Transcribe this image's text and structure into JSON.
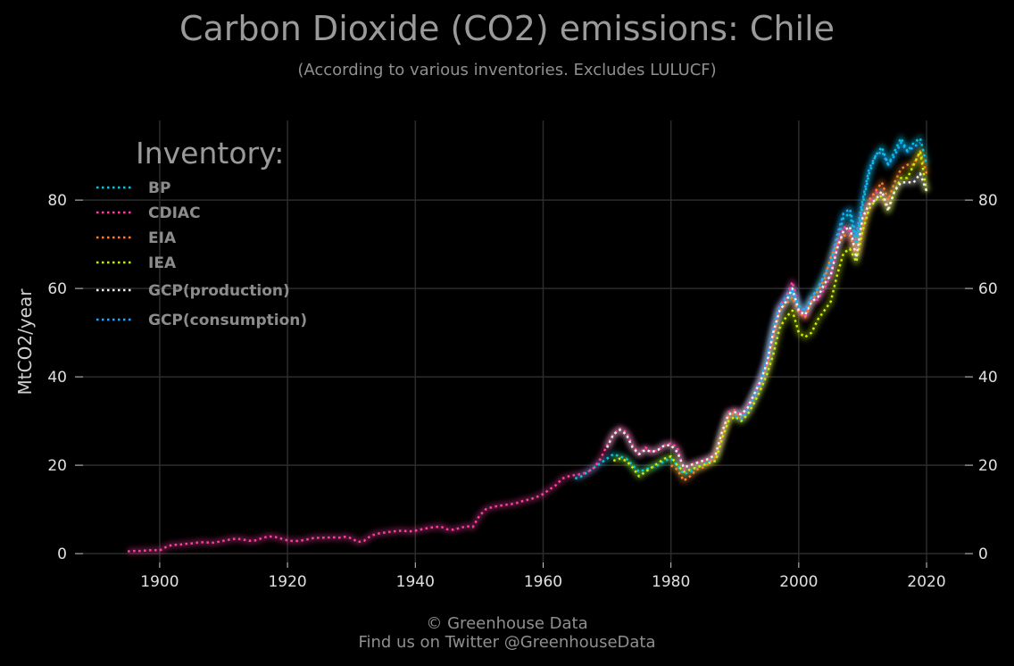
{
  "header": {
    "title": "Carbon Dioxide (CO2) emissions: Chile",
    "subtitle": "(According to various inventories. Excludes LULUCF)"
  },
  "footer": {
    "copyright": "© Greenhouse Data",
    "twitter": "Find us on Twitter @GreenhouseData"
  },
  "chart_data": {
    "type": "line",
    "title": "Carbon Dioxide (CO2) emissions: Chile",
    "subtitle": "(According to various inventories. Excludes LULUCF)",
    "ylabel": "MtCO2/year",
    "xlabel": "",
    "xlim": [
      1888,
      2026
    ],
    "ylim": [
      -2,
      98
    ],
    "x_ticks": [
      1900,
      1920,
      1940,
      1960,
      1980,
      2000,
      2020
    ],
    "y_ticks": [
      0,
      20,
      40,
      60,
      80
    ],
    "grid": true,
    "legend": {
      "title": "Inventory:",
      "placement": "top-left"
    },
    "series": [
      {
        "name": "BP",
        "color": "#00c8e0",
        "x": [
          1965,
          1966,
          1967,
          1968,
          1969,
          1970,
          1971,
          1972,
          1973,
          1974,
          1975,
          1976,
          1977,
          1978,
          1979,
          1980,
          1981,
          1982,
          1983,
          1984,
          1985,
          1986,
          1987,
          1988,
          1989,
          1990,
          1991,
          1992,
          1993,
          1994,
          1995,
          1996,
          1997,
          1998,
          1999,
          2000,
          2001,
          2002,
          2003,
          2004,
          2005,
          2006,
          2007,
          2008,
          2009,
          2010,
          2011,
          2012,
          2013,
          2014,
          2015,
          2016,
          2017,
          2018,
          2019,
          2020
        ],
        "y": [
          17,
          17.5,
          18.5,
          19.5,
          20.5,
          21.5,
          22.5,
          22,
          21.5,
          20,
          18.5,
          19,
          19.5,
          20,
          21,
          21.5,
          20,
          18,
          18.5,
          19.5,
          20,
          21,
          22,
          27,
          31.5,
          32,
          31.5,
          33,
          36,
          39,
          43,
          50,
          55,
          57,
          59,
          56,
          55,
          58,
          60,
          63,
          66,
          71,
          76,
          77,
          70,
          79,
          86,
          90,
          92,
          88,
          91,
          94,
          91,
          93,
          94,
          88
        ]
      },
      {
        "name": "CDIAC",
        "color": "#ff3fa0",
        "x": [
          1895,
          1896,
          1897,
          1898,
          1899,
          1900,
          1901,
          1902,
          1903,
          1904,
          1905,
          1906,
          1907,
          1908,
          1909,
          1910,
          1911,
          1912,
          1913,
          1914,
          1915,
          1916,
          1917,
          1918,
          1919,
          1920,
          1921,
          1922,
          1923,
          1924,
          1925,
          1926,
          1927,
          1928,
          1929,
          1930,
          1931,
          1932,
          1933,
          1934,
          1935,
          1936,
          1937,
          1938,
          1939,
          1940,
          1941,
          1942,
          1943,
          1944,
          1945,
          1946,
          1947,
          1948,
          1949,
          1950,
          1951,
          1952,
          1953,
          1954,
          1955,
          1956,
          1957,
          1958,
          1959,
          1960,
          1961,
          1962,
          1963,
          1964,
          1965,
          1966,
          1967,
          1968,
          1969,
          1970,
          1971,
          1972,
          1973,
          1974,
          1975,
          1976,
          1977,
          1978,
          1979,
          1980,
          1981,
          1982,
          1983,
          1984,
          1985,
          1986,
          1987,
          1988,
          1989,
          1990,
          1991,
          1992,
          1993,
          1994,
          1995,
          1996,
          1997,
          1998,
          1999,
          2000,
          2001,
          2002,
          2003,
          2004,
          2005,
          2006,
          2007,
          2008,
          2009,
          2010,
          2011,
          2012,
          2013,
          2014
        ],
        "y": [
          0.5,
          0.6,
          0.6,
          0.7,
          0.8,
          0.7,
          1.5,
          2.0,
          2.0,
          2.2,
          2.3,
          2.5,
          2.6,
          2.4,
          2.6,
          2.9,
          3.2,
          3.4,
          3.2,
          2.9,
          3.0,
          3.5,
          3.9,
          3.8,
          3.4,
          3.0,
          2.8,
          2.9,
          3.2,
          3.5,
          3.6,
          3.6,
          3.7,
          3.6,
          3.8,
          3.5,
          2.6,
          2.9,
          4.0,
          4.5,
          4.7,
          4.9,
          5.1,
          5.2,
          5.0,
          5.2,
          5.5,
          5.8,
          6.0,
          6.1,
          5.5,
          5.4,
          5.8,
          6.2,
          6.0,
          8.5,
          10.0,
          10.5,
          10.8,
          11.0,
          11.2,
          11.5,
          12.0,
          12.3,
          12.8,
          13.5,
          14.5,
          15.5,
          17.0,
          17.5,
          17.8,
          18.0,
          18.5,
          19.5,
          21.5,
          24.5,
          27.0,
          28.3,
          27.5,
          24.5,
          22.5,
          24.0,
          23.0,
          23.5,
          24.5,
          25.0,
          24.0,
          19.0,
          20.0,
          20.5,
          21.0,
          21.5,
          22.5,
          27.0,
          32.0,
          32.5,
          31.5,
          33.5,
          36.0,
          39.5,
          43.5,
          50.0,
          56.0,
          58.0,
          61.5,
          55.5,
          53.5,
          57.5,
          57.5,
          60.0,
          63.0,
          70.0,
          74.0,
          73.0,
          68.0,
          76.5,
          79.0,
          82.0,
          80.5,
          79.0
        ]
      },
      {
        "name": "EIA",
        "color": "#ff7f27",
        "x": [
          1980,
          1981,
          1982,
          1983,
          1984,
          1985,
          1986,
          1987,
          1988,
          1989,
          1990,
          1991,
          1992,
          1993,
          1994,
          1995,
          1996,
          1997,
          1998,
          1999,
          2000,
          2001,
          2002,
          2003,
          2004,
          2005,
          2006,
          2007,
          2008,
          2009,
          2010,
          2011,
          2012,
          2013,
          2014,
          2015,
          2016,
          2017,
          2018,
          2019,
          2020
        ],
        "y": [
          20,
          19,
          16.5,
          17.5,
          19,
          19.5,
          20.5,
          22,
          26.5,
          31,
          32,
          30.5,
          32.5,
          35.5,
          38.5,
          42.5,
          49,
          55,
          56.5,
          58,
          54.5,
          53.5,
          57,
          59.5,
          62,
          67,
          70,
          72,
          72,
          68,
          73,
          80,
          82,
          84,
          80,
          84,
          87,
          88,
          88,
          91,
          86
        ]
      },
      {
        "name": "IEA",
        "color": "#c8f000",
        "x": [
          1971,
          1972,
          1973,
          1974,
          1975,
          1976,
          1977,
          1978,
          1979,
          1980,
          1981,
          1982,
          1983,
          1984,
          1985,
          1986,
          1987,
          1988,
          1989,
          1990,
          1991,
          1992,
          1993,
          1994,
          1995,
          1996,
          1997,
          1998,
          1999,
          2000,
          2001,
          2002,
          2003,
          2004,
          2005,
          2006,
          2007,
          2008,
          2009,
          2010,
          2011,
          2012,
          2013,
          2014,
          2015,
          2016,
          2017,
          2018,
          2019,
          2020
        ],
        "y": [
          21,
          21.5,
          21,
          19.5,
          17.5,
          18.5,
          19.5,
          20.5,
          21.5,
          22,
          20,
          18.5,
          19,
          19.5,
          20,
          20.5,
          21,
          26,
          30,
          31,
          30,
          31.5,
          34,
          37,
          40.5,
          45,
          51,
          53.5,
          55,
          50,
          49,
          50,
          53,
          55,
          57,
          63,
          68,
          69,
          66,
          73,
          78,
          80,
          81,
          77.5,
          82,
          85,
          85,
          88,
          91,
          82
        ]
      },
      {
        "name": "GCP(production)",
        "color": "#f0f0f0",
        "x": [
          1970,
          1971,
          1972,
          1973,
          1974,
          1975,
          1976,
          1977,
          1978,
          1979,
          1980,
          1981,
          1982,
          1983,
          1984,
          1985,
          1986,
          1987,
          1988,
          1989,
          1990,
          1991,
          1992,
          1993,
          1994,
          1995,
          1996,
          1997,
          1998,
          1999,
          2000,
          2001,
          2002,
          2003,
          2004,
          2005,
          2006,
          2007,
          2008,
          2009,
          2010,
          2011,
          2012,
          2013,
          2014,
          2015,
          2016,
          2017,
          2018,
          2019,
          2020
        ],
        "y": [
          24,
          27,
          28,
          27,
          24,
          22.5,
          23.5,
          23,
          23.5,
          24.5,
          24.5,
          23,
          19.5,
          20,
          20.5,
          21,
          21.5,
          22.5,
          27.5,
          31.5,
          32,
          31.5,
          33,
          36,
          39,
          43,
          50,
          55,
          57,
          60,
          55,
          54,
          57,
          58,
          61,
          63,
          69,
          73,
          74,
          67,
          76,
          79,
          80,
          82,
          78,
          82,
          84,
          84,
          84,
          86,
          82
        ]
      },
      {
        "name": "GCP(consumption)",
        "color": "#1fa8ff",
        "x": [
          1990,
          1991,
          1992,
          1993,
          1994,
          1995,
          1996,
          1997,
          1998,
          1999,
          2000,
          2001,
          2002,
          2003,
          2004,
          2005,
          2006,
          2007,
          2008,
          2009,
          2010,
          2011,
          2012,
          2013,
          2014,
          2015,
          2016,
          2017,
          2018,
          2019
        ],
        "y": [
          31,
          30.5,
          32.5,
          35.5,
          39,
          44,
          51,
          56,
          58,
          60,
          56,
          55,
          58,
          60,
          63,
          66,
          72,
          77,
          78,
          72,
          80,
          87,
          90,
          91,
          88,
          90,
          93,
          91,
          92,
          93
        ]
      }
    ]
  }
}
